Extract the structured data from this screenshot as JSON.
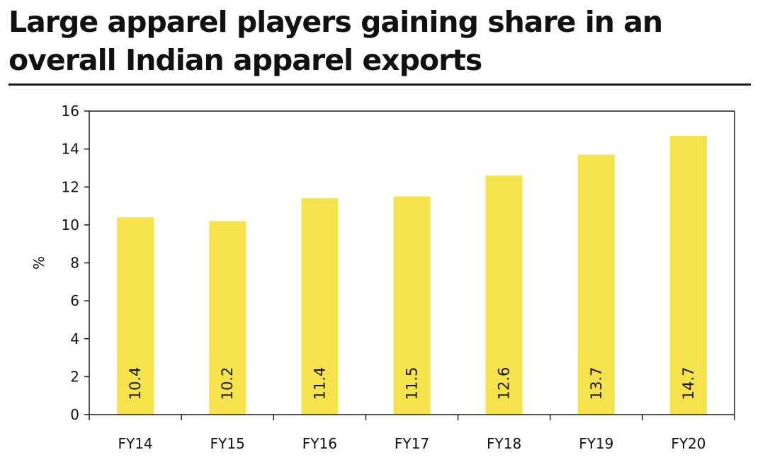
{
  "title": "Large apparel players gaining share in an overall Indian apparel exports",
  "colors": {
    "bar": "#f6e24a",
    "axis": "#1a1a1a",
    "text": "#111111"
  },
  "chart_data": {
    "type": "bar",
    "title": "Large apparel players gaining share in an overall Indian apparel exports",
    "xlabel": "",
    "ylabel": "%",
    "categories": [
      "FY14",
      "FY15",
      "FY16",
      "FY17",
      "FY18",
      "FY19",
      "FY20"
    ],
    "values": [
      10.4,
      10.2,
      11.4,
      11.5,
      12.6,
      13.7,
      14.7
    ],
    "data_labels": [
      "10.4",
      "10.2",
      "11.4",
      "11.5",
      "12.6",
      "13.7",
      "14.7"
    ],
    "ylim": [
      0,
      16
    ],
    "yticks": [
      "0",
      "2",
      "4",
      "6",
      "8",
      "10",
      "12",
      "14",
      "16"
    ],
    "grid": false,
    "legend": "none"
  }
}
